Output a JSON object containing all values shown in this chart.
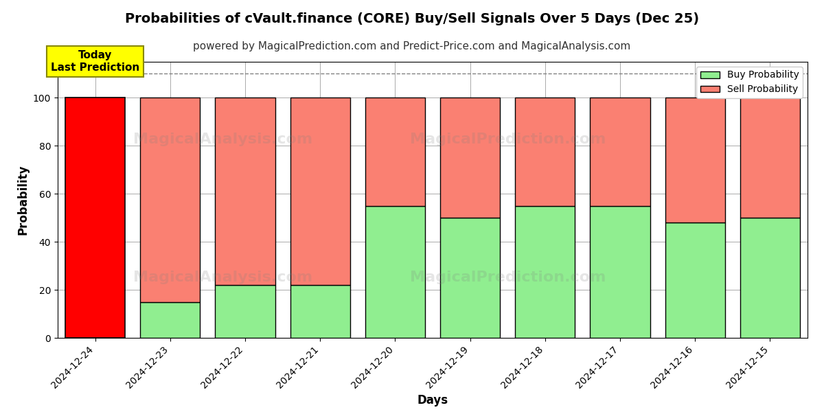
{
  "title": "Probabilities of cVault.finance (CORE) Buy/Sell Signals Over 5 Days (Dec 25)",
  "subtitle": "powered by MagicalPrediction.com and Predict-Price.com and MagicalAnalysis.com",
  "xlabel": "Days",
  "ylabel": "Probability",
  "days": [
    "2024-12-24",
    "2024-12-23",
    "2024-12-22",
    "2024-12-21",
    "2024-12-20",
    "2024-12-19",
    "2024-12-18",
    "2024-12-17",
    "2024-12-16",
    "2024-12-15"
  ],
  "buy_prob": [
    0,
    15,
    22,
    22,
    55,
    50,
    55,
    55,
    48,
    50
  ],
  "sell_prob": [
    100,
    85,
    78,
    78,
    45,
    50,
    45,
    45,
    52,
    50
  ],
  "buy_color_default": "#90EE90",
  "sell_color_default": "#FA8072",
  "bar_color_today": "#FF0000",
  "bar_edge_color": "#000000",
  "ylim": [
    0,
    115
  ],
  "yticks": [
    0,
    20,
    40,
    60,
    80,
    100
  ],
  "dashed_line_y": 110,
  "annotation_text": "Today\nLast Prediction",
  "annotation_bg": "#FFFF00",
  "annotation_edge": "#888800",
  "legend_buy_label": "Buy Probability",
  "legend_sell_label": "Sell Probability",
  "background_color": "#ffffff",
  "grid_color": "#aaaaaa",
  "title_fontsize": 14,
  "subtitle_fontsize": 11,
  "label_fontsize": 12,
  "tick_fontsize": 10
}
